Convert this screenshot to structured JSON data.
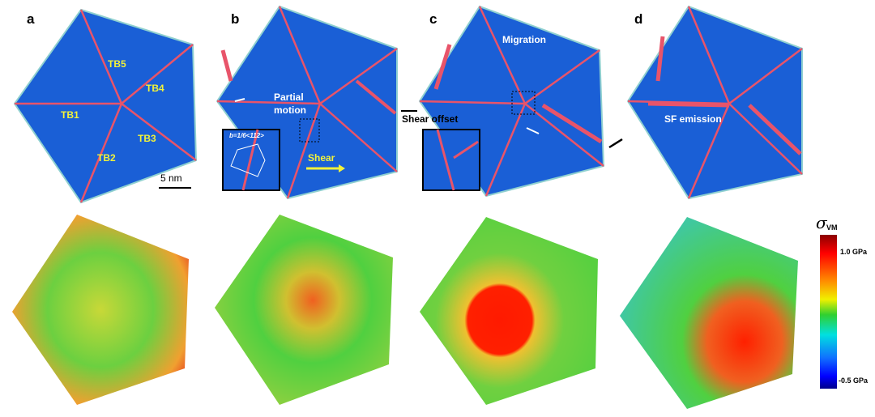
{
  "panels": [
    {
      "letter": "a",
      "labels": {
        "tb1": "TB1",
        "tb2": "TB2",
        "tb3": "TB3",
        "tb4": "TB4",
        "tb5": "TB5"
      },
      "scale_bar": "5 nm"
    },
    {
      "letter": "b",
      "annotations": {
        "partial_motion_1": "Partial",
        "partial_motion_2": "motion",
        "shear": "Shear",
        "inset_burgers": "b=1/6<112>"
      }
    },
    {
      "letter": "c",
      "annotations": {
        "migration": "Migration",
        "shear_offset": "Shear offset"
      }
    },
    {
      "letter": "d",
      "annotations": {
        "sf_emission": "SF emission"
      }
    }
  ],
  "colorbar": {
    "symbol": "σ",
    "subscript": "VM",
    "max_label": "1.0 GPa",
    "min_label": "-0.5 GPa",
    "range_gpa": [
      -0.5,
      1.0
    ]
  },
  "colors": {
    "crystal": "#1a5fd6",
    "twin_boundary": "#e8546a",
    "label_yellow": "#f2f23a",
    "arrow_white": "#ffffff"
  }
}
